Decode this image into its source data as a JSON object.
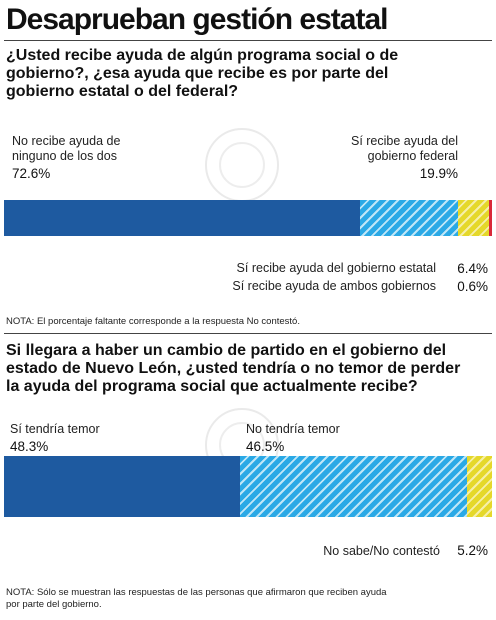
{
  "title": "Desaprueban gestión estatal",
  "q1": {
    "question_lines": [
      "¿Usted recibe ayuda de algún programa social o de",
      "gobierno?, ¿esa ayuda que recibe es por parte del",
      "gobierno estatal o del federal?"
    ],
    "labels": {
      "no_recibe_l1": "No recibe ayuda de",
      "no_recibe_l2": "ninguno de los dos",
      "no_recibe_pct": "72.6%",
      "federal_l1": "Sí recibe ayuda del",
      "federal_l2": "gobierno federal",
      "federal_pct": "19.9%",
      "estatal": "Sí recibe ayuda del gobierno estatal",
      "estatal_pct": "6.4%",
      "ambos": "Sí recibe ayuda de ambos gobiernos",
      "ambos_pct": "0.6%"
    },
    "note": "NOTA: El porcentaje faltante corresponde a la respuesta No contestó."
  },
  "q2": {
    "question_lines": [
      "Si llegara a haber un cambio de partido en el gobierno del",
      "estado de Nuevo León, ¿usted tendría o no temor de perder",
      "la ayuda del programa social que actualmente recibe?"
    ],
    "labels": {
      "temor": "Sí tendría temor",
      "temor_pct": "48.3%",
      "no_temor": "No tendría temor",
      "no_temor_pct": "46.5%",
      "nosabe": "No sabe/No contestó",
      "nosabe_pct": "5.2%"
    },
    "note_lines": [
      "NOTA: Sólo se muestran las respuestas de las personas que afirmaron que reciben ayuda",
      "por parte del gobierno."
    ]
  },
  "colors": {
    "dark_blue": "#1e5aa0",
    "light_blue": "#2aa9e6",
    "yellow": "#e5d82a",
    "red": "#d9283a"
  },
  "chart_data": [
    {
      "type": "bar",
      "orientation": "horizontal-stacked",
      "categories": [
        "No recibe ayuda de ninguno de los dos",
        "Sí recibe ayuda del gobierno federal",
        "Sí recibe ayuda del gobierno estatal",
        "Sí recibe ayuda de ambos gobiernos"
      ],
      "values": [
        72.6,
        19.9,
        6.4,
        0.6
      ],
      "unit": "%"
    },
    {
      "type": "bar",
      "orientation": "horizontal-stacked",
      "categories": [
        "Sí tendría temor",
        "No tendría temor",
        "No sabe/No contestó"
      ],
      "values": [
        48.3,
        46.5,
        5.2
      ],
      "unit": "%"
    }
  ]
}
